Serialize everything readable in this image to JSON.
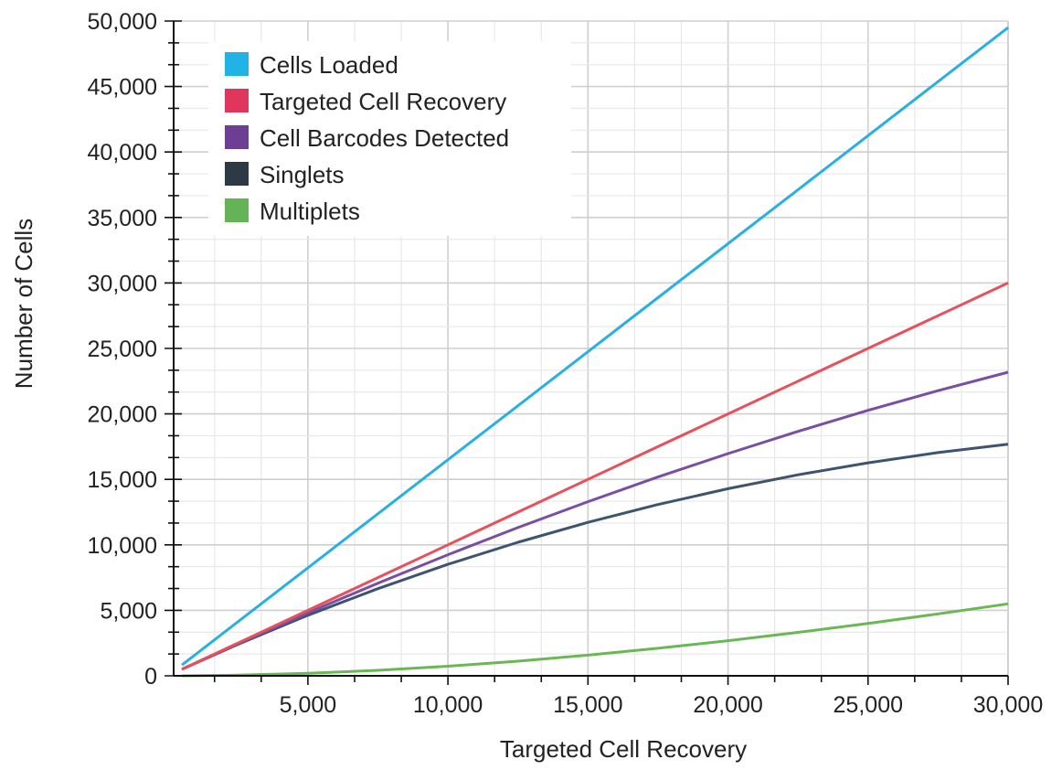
{
  "chart_data": {
    "type": "line",
    "title": "",
    "xlabel": "Targeted Cell Recovery",
    "ylabel": "Number of Cells",
    "xlim": [
      500,
      30000
    ],
    "ylim": [
      0,
      50000
    ],
    "grid": true,
    "legend_position": "top-left",
    "x_ticks": [
      "5,000",
      "10,000",
      "15,000",
      "20,000",
      "25,000",
      "30,000"
    ],
    "x_tick_values": [
      5000,
      10000,
      15000,
      20000,
      25000,
      30000
    ],
    "y_ticks": [
      "0",
      "5,000",
      "10,000",
      "15,000",
      "20,000",
      "25,000",
      "30,000",
      "35,000",
      "40,000",
      "45,000",
      "50,000"
    ],
    "y_tick_values": [
      0,
      5000,
      10000,
      15000,
      20000,
      25000,
      30000,
      35000,
      40000,
      45000,
      50000
    ],
    "x": [
      500,
      2500,
      5000,
      7500,
      10000,
      12500,
      15000,
      17500,
      20000,
      22500,
      25000,
      27500,
      30000
    ],
    "series": [
      {
        "name": "Cells Loaded",
        "color": "#29b0e3",
        "legend_color": "#22b3e6",
        "values": [
          825,
          4125,
          8250,
          12375,
          16500,
          20625,
          24750,
          28875,
          33000,
          37125,
          41250,
          45375,
          49500
        ]
      },
      {
        "name": "Targeted Cell Recovery",
        "color": "#e8505b",
        "legend_color": "#e0365e",
        "values": [
          500,
          2500,
          5000,
          7500,
          10000,
          12500,
          15000,
          17500,
          20000,
          22500,
          25000,
          27500,
          30000
        ]
      },
      {
        "name": "Cell Barcodes Detected",
        "color": "#7a4ea3",
        "legend_color": "#6c3f95",
        "values": [
          498,
          2453,
          4811,
          7074,
          9243,
          11317,
          13297,
          15182,
          16972,
          18668,
          20269,
          21775,
          23187
        ]
      },
      {
        "name": "Singlets",
        "color": "#3d5470",
        "legend_color": "#2d3a45",
        "values": [
          496,
          2405,
          4621,
          6655,
          8513,
          10199,
          11721,
          13083,
          14290,
          15350,
          16266,
          17044,
          17692
        ]
      },
      {
        "name": "Multiplets",
        "color": "#6ab853",
        "legend_color": "#64b356",
        "values": [
          2,
          48,
          190,
          419,
          730,
          1118,
          1576,
          2099,
          2682,
          3318,
          4003,
          4731,
          5495
        ]
      }
    ]
  }
}
